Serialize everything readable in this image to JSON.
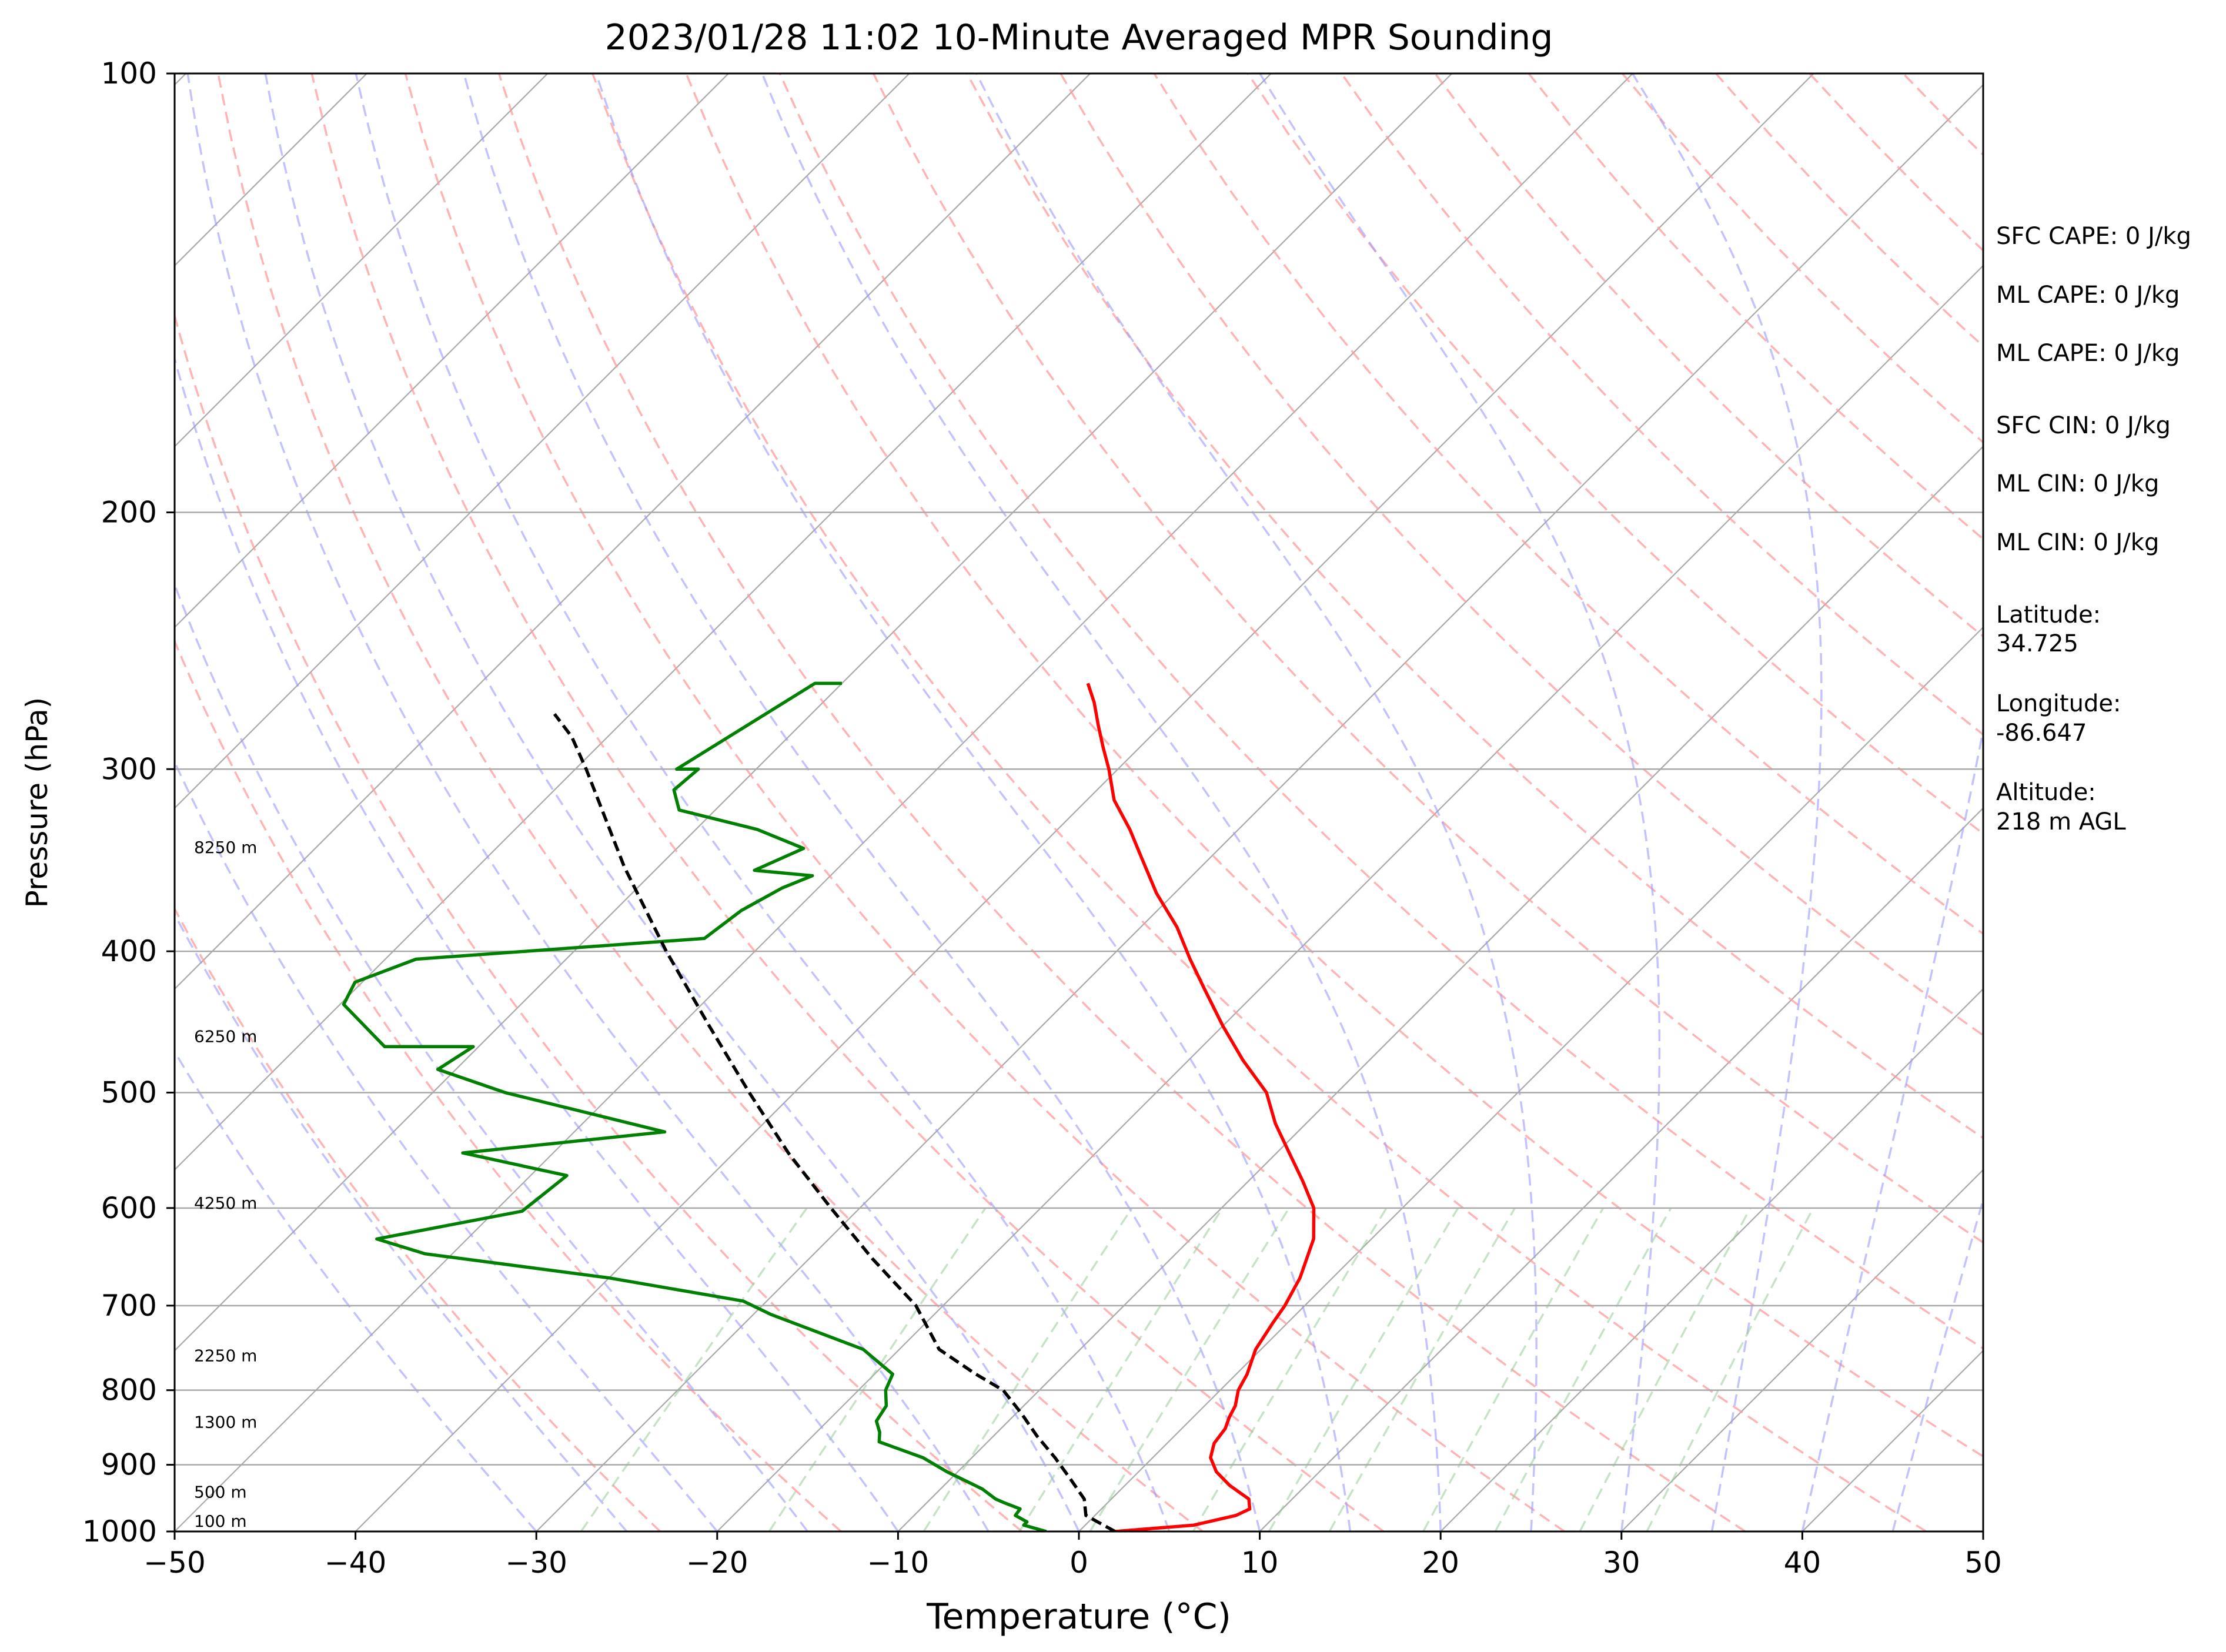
{
  "chart_data": {
    "type": "line",
    "title": "2023/01/28 11:02 10-Minute Averaged MPR Sounding",
    "xlabel": "Temperature (°C)",
    "ylabel": "Pressure (hPa)",
    "xlim": [
      -50,
      50
    ],
    "ylim": [
      1000,
      100
    ],
    "y_scale": "log",
    "x_ticks": [
      -50,
      -40,
      -30,
      -20,
      -10,
      0,
      10,
      20,
      30,
      40,
      50
    ],
    "x_tick_labels": [
      "−50",
      "−40",
      "−30",
      "−20",
      "−10",
      "0",
      "10",
      "20",
      "30",
      "40",
      "50"
    ],
    "y_ticks": [
      100,
      200,
      300,
      400,
      500,
      600,
      700,
      800,
      900,
      1000
    ],
    "y_tick_labels": [
      "100",
      "200",
      "300",
      "400",
      "500",
      "600",
      "700",
      "800",
      "900",
      "1000"
    ],
    "grid": true,
    "skew": "temperature lines skewed 45°",
    "colors": {
      "temperature": "#ff0000",
      "dewpoint": "#008000",
      "parcel": "#000000",
      "isotherms": "#a9a9a9",
      "dry_adiabats": "#ff9999",
      "moist_adiabats": "#9999ff",
      "mixing_ratio": "#99cc99"
    },
    "series": [
      {
        "key": "temperature",
        "points": [
          [
            2.0,
            1000
          ],
          [
            6.0,
            990
          ],
          [
            7.8,
            975
          ],
          [
            8.2,
            965
          ],
          [
            7.6,
            950
          ],
          [
            5.8,
            930
          ],
          [
            4.3,
            910
          ],
          [
            3.2,
            890
          ],
          [
            2.6,
            870
          ],
          [
            2.4,
            850
          ],
          [
            2.0,
            835
          ],
          [
            1.7,
            820
          ],
          [
            1.0,
            800
          ],
          [
            0.6,
            780
          ],
          [
            -0.3,
            750
          ],
          [
            -0.8,
            720
          ],
          [
            -1.1,
            700
          ],
          [
            -1.8,
            670
          ],
          [
            -3.2,
            630
          ],
          [
            -4.9,
            600
          ],
          [
            -7.0,
            575
          ],
          [
            -9.3,
            550
          ],
          [
            -11.7,
            525
          ],
          [
            -13.9,
            500
          ],
          [
            -17.0,
            475
          ],
          [
            -20.0,
            450
          ],
          [
            -23.0,
            425
          ],
          [
            -25.5,
            405
          ],
          [
            -28.0,
            385
          ],
          [
            -31.0,
            365
          ],
          [
            -33.8,
            345
          ],
          [
            -36.0,
            330
          ],
          [
            -38.5,
            315
          ],
          [
            -40.5,
            300
          ],
          [
            -42.0,
            290
          ],
          [
            -43.5,
            280
          ],
          [
            -45.0,
            270
          ],
          [
            -46.4,
            262
          ]
        ]
      },
      {
        "key": "dewpoint",
        "points": [
          [
            -1.8,
            1000
          ],
          [
            -3.4,
            990
          ],
          [
            -3.4,
            985
          ],
          [
            -4.4,
            975
          ],
          [
            -4.5,
            965
          ],
          [
            -5.8,
            955
          ],
          [
            -6.4,
            950
          ],
          [
            -7.7,
            935
          ],
          [
            -10.6,
            910
          ],
          [
            -12.7,
            890
          ],
          [
            -16.0,
            868
          ],
          [
            -16.5,
            855
          ],
          [
            -17.3,
            840
          ],
          [
            -17.6,
            820
          ],
          [
            -18.5,
            800
          ],
          [
            -19.0,
            780
          ],
          [
            -22.0,
            750
          ],
          [
            -29.0,
            710
          ],
          [
            -31.3,
            695
          ],
          [
            -40.0,
            670
          ],
          [
            -51.5,
            645
          ],
          [
            -55.0,
            630
          ],
          [
            -48.5,
            603
          ],
          [
            -48.3,
            590
          ],
          [
            -48.0,
            570
          ],
          [
            -55.0,
            550
          ],
          [
            -45.0,
            532
          ],
          [
            -56.0,
            500
          ],
          [
            -61.0,
            482
          ],
          [
            -60.3,
            465
          ],
          [
            -65.2,
            465
          ],
          [
            -69.8,
            435
          ],
          [
            -70.4,
            420
          ],
          [
            -68.3,
            405
          ],
          [
            -53.5,
            392
          ],
          [
            -53.0,
            375
          ],
          [
            -52.0,
            362
          ],
          [
            -51.0,
            355
          ],
          [
            -54.5,
            352
          ],
          [
            -53.0,
            340
          ],
          [
            -56.6,
            330
          ],
          [
            -62.0,
            320
          ],
          [
            -63.4,
            310
          ],
          [
            -63.2,
            300
          ],
          [
            -64.4,
            300
          ],
          [
            -61.5,
            262
          ],
          [
            -60.0,
            262
          ]
        ]
      },
      {
        "key": "parcel",
        "points": [
          [
            2.0,
            1000
          ],
          [
            -0.5,
            975
          ],
          [
            -1.5,
            950
          ],
          [
            -3.4,
            920
          ],
          [
            -5.4,
            890
          ],
          [
            -7.6,
            860
          ],
          [
            -9.7,
            830
          ],
          [
            -12.0,
            800
          ],
          [
            -14.4,
            780
          ],
          [
            -17.8,
            750
          ],
          [
            -21.5,
            700
          ],
          [
            -26.5,
            650
          ],
          [
            -31.6,
            600
          ],
          [
            -37.0,
            550
          ],
          [
            -42.5,
            500
          ],
          [
            -48.4,
            450
          ],
          [
            -54.9,
            400
          ],
          [
            -61.9,
            350
          ],
          [
            -69.4,
            300
          ],
          [
            -72.0,
            285
          ],
          [
            -74.2,
            275
          ]
        ]
      }
    ],
    "height_annotations": [
      "100 m",
      "500 m",
      "1300 m",
      "2250 m",
      "4250 m",
      "6250 m",
      "8250 m"
    ],
    "height_annotation_levels": [
      1000,
      955,
      855,
      770,
      605,
      465,
      345
    ]
  },
  "side_panel": {
    "lines": [
      "SFC CAPE: 0 J/kg",
      "ML CAPE: 0 J/kg",
      "ML CAPE: 0 J/kg",
      "SFC CIN: 0 J/kg",
      "ML CIN: 0 J/kg",
      "ML CIN: 0 J/kg"
    ],
    "latitude_label": "Latitude:",
    "latitude_value": "34.725",
    "longitude_label": "Longitude:",
    "longitude_value": "-86.647",
    "altitude_label": "Altitude:",
    "altitude_value": "218 m AGL"
  }
}
